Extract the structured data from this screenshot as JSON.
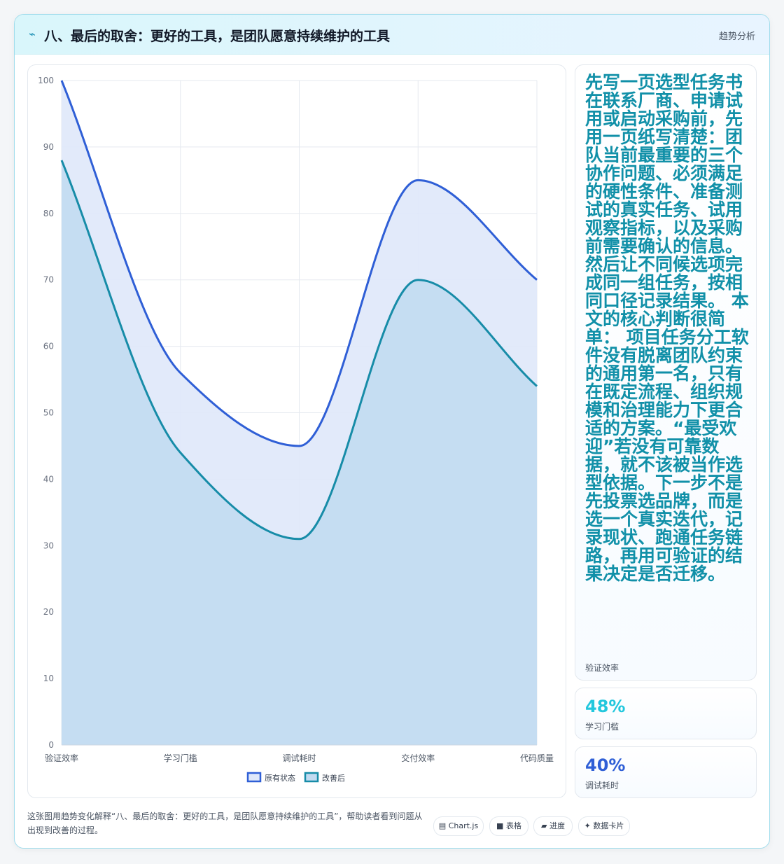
{
  "header": {
    "icon": "chart-trend-icon",
    "title": "八、最后的取舍：更好的工具，是团队愿意持续维护的工具",
    "tag": "趋势分析"
  },
  "chart_data": {
    "type": "area",
    "categories": [
      "验证效率",
      "学习门槛",
      "调试耗时",
      "交付效率",
      "代码质量"
    ],
    "ylim": [
      0,
      100
    ],
    "yticks": [
      0,
      10,
      20,
      30,
      40,
      50,
      60,
      70,
      80,
      90,
      100
    ],
    "grid": true,
    "legend": "bottom",
    "series": [
      {
        "name": "原有状态",
        "values": [
          100,
          56,
          45,
          85,
          70
        ],
        "color": "#2f5fd6",
        "fill": "#dfe8fa"
      },
      {
        "name": "改善后",
        "values": [
          88,
          44,
          31,
          70,
          54
        ],
        "color": "#178ca8",
        "fill": "#c2dbf1"
      }
    ]
  },
  "side": {
    "text": "先写一页选型任务书 在联系厂商、申请试用或启动采购前，先用一页纸写清楚：团队当前最重要的三个协作问题、必须满足的硬性条件、准备测试的真实任务、试用观察指标，以及采购前需要确认的信息。然后让不同候选项完成同一组任务，按相同口径记录结果。 本文的核心判断很简单： 项目任务分工软件没有脱离团队约束的通用第一名，只有在既定流程、组织规模和治理能力下更合适的方案。“最受欢迎”若没有可靠数据，就不该被当作选型依据。下一步不是先投票选品牌，而是选一个真实迭代，记录现状、跑通任务链路，再用可验证的结果决定是否迁移。",
    "text_label": "验证效率",
    "stat1": {
      "value": "48%",
      "label": "学习门槛",
      "color": "#22c7dd"
    },
    "stat2": {
      "value": "40%",
      "label": "调试耗时",
      "color": "#2f5fd6"
    }
  },
  "footer": {
    "caption": "这张图用趋势变化解释“八、最后的取舍：更好的工具，是团队愿意持续维护的工具”，帮助读者看到问题从出现到改善的过程。",
    "pills": [
      {
        "icon": "chart-icon",
        "glyph": "▤",
        "label": "Chart.js"
      },
      {
        "icon": "table-icon",
        "glyph": "■",
        "label": "表格"
      },
      {
        "icon": "progress-icon",
        "glyph": "▰",
        "label": "进度"
      },
      {
        "icon": "card-icon",
        "glyph": "✦",
        "label": "数据卡片"
      }
    ]
  }
}
